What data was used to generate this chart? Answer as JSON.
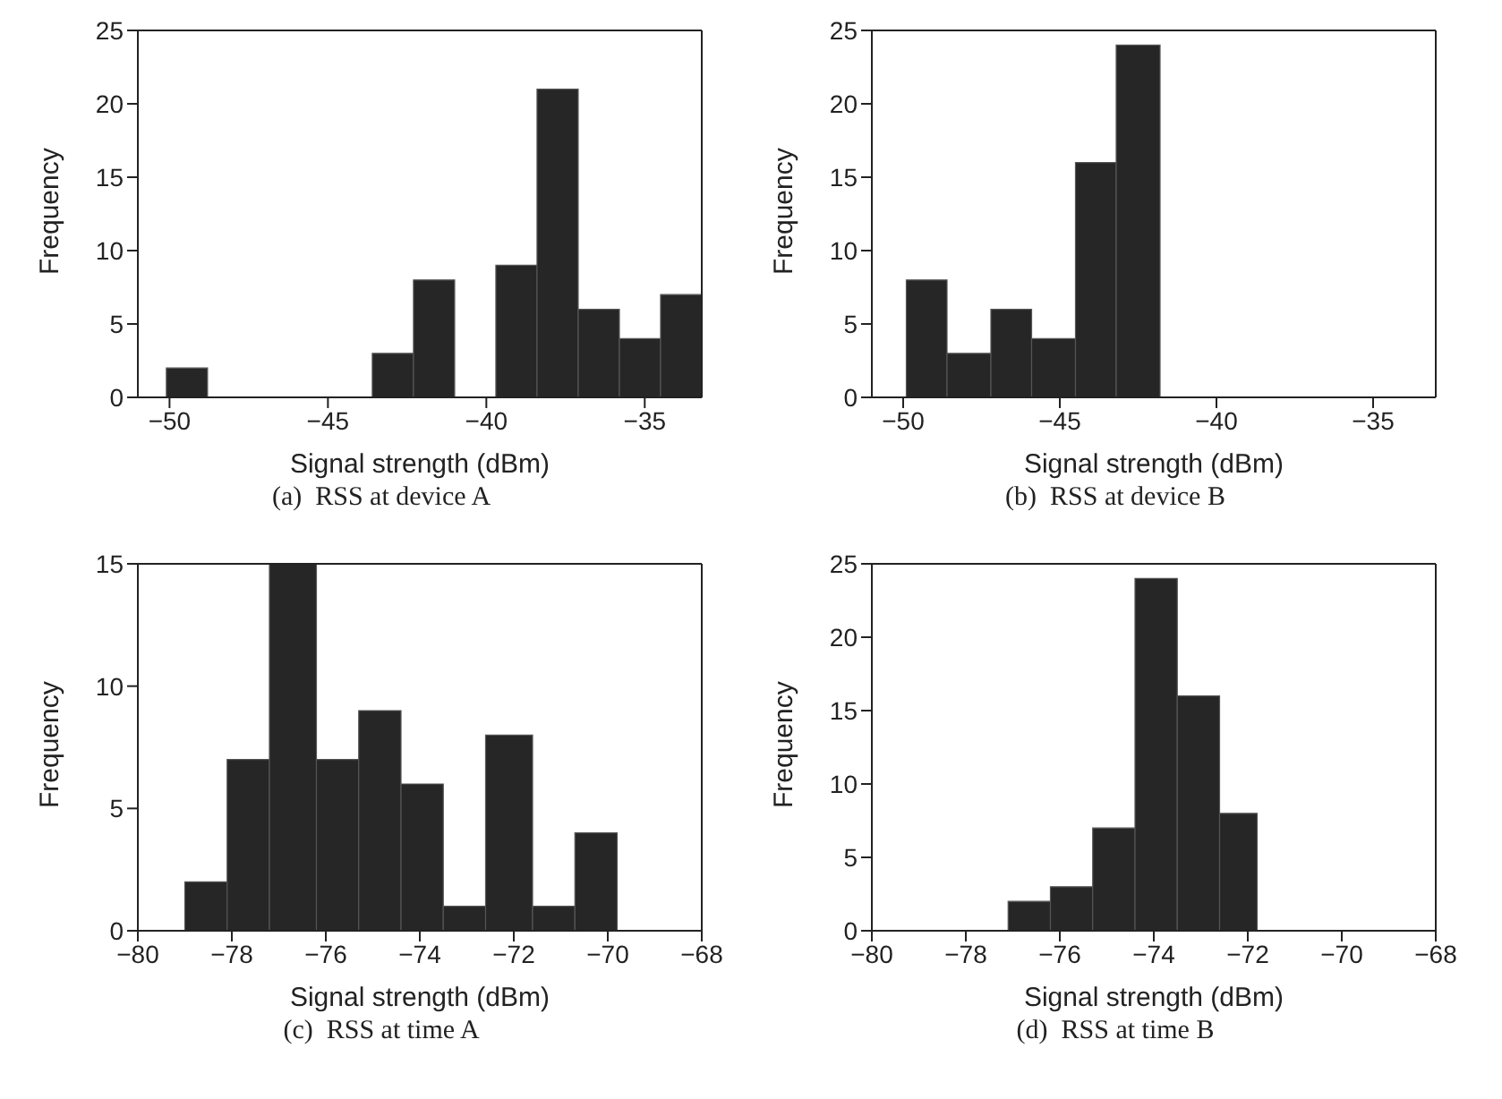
{
  "chart_data": [
    {
      "type": "histogram",
      "bins": [
        -50.1,
        -48.8,
        -47.5,
        -46.2,
        -44.9,
        -43.6,
        -42.3,
        -41.0,
        -39.7,
        -38.4,
        -37.1,
        -35.8,
        -34.5,
        -33.2
      ],
      "values": [
        2,
        0,
        0,
        0,
        0,
        3,
        8,
        0,
        9,
        21,
        6,
        4,
        7
      ],
      "color": "#262626",
      "xlim": [
        -51,
        -33.2
      ],
      "xticks": [
        -50,
        -45,
        -40,
        -35
      ],
      "ylim": [
        0,
        25
      ],
      "yticks": [
        0,
        5,
        10,
        15,
        20,
        25
      ],
      "xlabel": "Signal strength (dBm)",
      "ylabel": "Frequency",
      "annotations": [
        "(a)  RSS at device A"
      ]
    },
    {
      "type": "histogram",
      "bins": [
        -49.9,
        -48.6,
        -47.2,
        -45.9,
        -44.5,
        -43.2,
        -41.8
      ],
      "values": [
        8,
        3,
        6,
        4,
        16,
        24
      ],
      "color": "#262626",
      "xlim": [
        -51,
        -33
      ],
      "xticks": [
        -50,
        -45,
        -40,
        -35
      ],
      "ylim": [
        0,
        25
      ],
      "yticks": [
        0,
        5,
        10,
        15,
        20,
        25
      ],
      "xlabel": "Signal strength (dBm)",
      "ylabel": "Frequency",
      "annotations": [
        "(b)  RSS at device B"
      ]
    },
    {
      "type": "histogram",
      "bins": [
        -79.0,
        -78.1,
        -77.2,
        -76.2,
        -75.3,
        -74.4,
        -73.5,
        -72.6,
        -71.6,
        -70.7,
        -69.8
      ],
      "values": [
        2,
        7,
        15,
        7,
        9,
        6,
        1,
        8,
        1,
        4
      ],
      "color": "#262626",
      "xlim": [
        -80,
        -68
      ],
      "xticks": [
        -80,
        -78,
        -76,
        -74,
        -72,
        -70,
        -68
      ],
      "ylim": [
        0,
        15
      ],
      "yticks": [
        0,
        5,
        10,
        15
      ],
      "xlabel": "Signal strength (dBm)",
      "ylabel": "Frequency",
      "annotations": [
        "(c)  RSS at time A"
      ]
    },
    {
      "type": "histogram",
      "bins": [
        -77.1,
        -76.2,
        -75.3,
        -74.4,
        -73.5,
        -72.6,
        -71.8
      ],
      "values": [
        2,
        3,
        7,
        24,
        16,
        8
      ],
      "color": "#262626",
      "xlim": [
        -80,
        -68
      ],
      "xticks": [
        -80,
        -78,
        -76,
        -74,
        -72,
        -70,
        -68
      ],
      "ylim": [
        0,
        25
      ],
      "yticks": [
        0,
        5,
        10,
        15,
        20,
        25
      ],
      "xlabel": "Signal strength (dBm)",
      "ylabel": "Frequency",
      "annotations": [
        "(d)  RSS at time B"
      ]
    }
  ]
}
